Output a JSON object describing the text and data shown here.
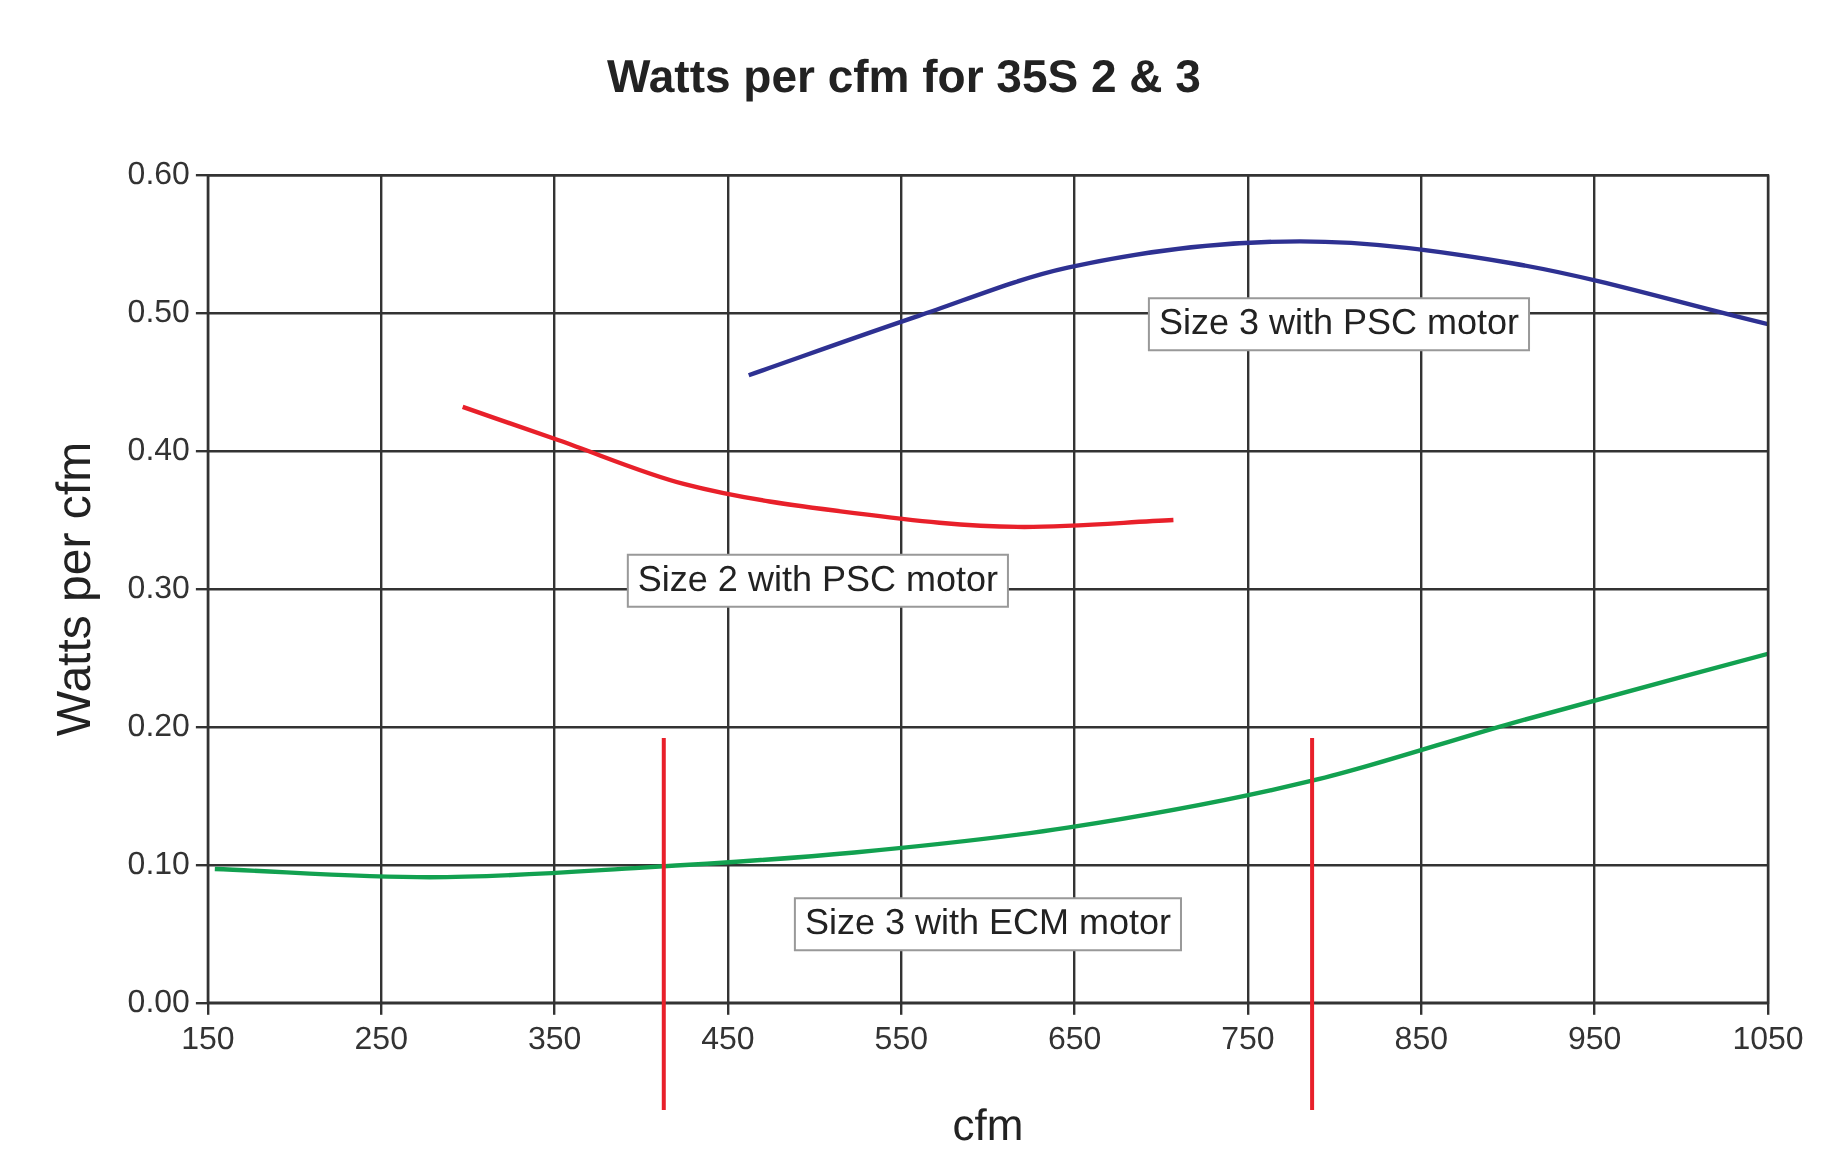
{
  "chart_data": {
    "type": "line",
    "title": "Watts per cfm for 35S 2 & 3",
    "xlabel": "cfm",
    "ylabel": "Watts per cfm",
    "series": [
      {
        "name": "Size 3 with PSC motor",
        "color": "#2e3192",
        "x": [
          462,
          560,
          646,
          780,
          903,
          1050
        ],
        "values": [
          0.455,
          0.498,
          0.533,
          0.552,
          0.536,
          0.492
        ]
      },
      {
        "name": "Size 2 with PSC motor",
        "color": "#e8202a",
        "x": [
          297,
          352,
          425,
          523,
          621,
          707
        ],
        "values": [
          0.432,
          0.408,
          0.376,
          0.355,
          0.345,
          0.35
        ]
      },
      {
        "name": "Size 3 with ECM motor",
        "color": "#12a150",
        "x": [
          154,
          278,
          401,
          523,
          646,
          787,
          903,
          1050
        ],
        "values": [
          0.097,
          0.091,
          0.098,
          0.109,
          0.127,
          0.161,
          0.203,
          0.253
        ]
      }
    ],
    "xlim": [
      150,
      1050
    ],
    "xticks": [
      150,
      250,
      350,
      450,
      550,
      650,
      750,
      850,
      950,
      1050
    ],
    "ylim": [
      0,
      0.6
    ],
    "yticks": [
      {
        "value": 0,
        "label": "0.00"
      },
      {
        "value": 0.1,
        "label": "0.10"
      },
      {
        "value": 0.2,
        "label": "0.20"
      },
      {
        "value": 0.3,
        "label": "0.30"
      },
      {
        "value": 0.4,
        "label": "0.40"
      },
      {
        "value": 0.5,
        "label": "0.50"
      },
      {
        "value": 0.6,
        "label": "0.60"
      }
    ],
    "ref_lines": [
      {
        "axis": "x",
        "value": 413,
        "color": "#e8202a"
      },
      {
        "axis": "x",
        "value": 787,
        "color": "#e8202a"
      }
    ],
    "grid": true,
    "legend": false,
    "marker": "none",
    "line_style": "solid"
  }
}
